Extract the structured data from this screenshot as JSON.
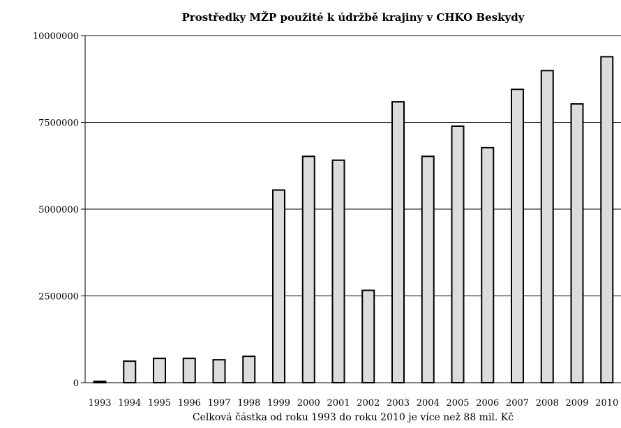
{
  "chart_data": {
    "type": "bar",
    "title": "Prostředky MŽP použité k údržbě krajiny v CHKO Beskydy",
    "xlabel": "",
    "ylabel": "",
    "caption": "Celková částka od roku 1993 do roku 2010 je více než 88 mil. Kč",
    "categories": [
      "1993",
      "1994",
      "1995",
      "1996",
      "1997",
      "1998",
      "1999",
      "2000",
      "2001",
      "2002",
      "2003",
      "2004",
      "2005",
      "2006",
      "2007",
      "2008",
      "2009",
      "2010"
    ],
    "values": [
      40000,
      620000,
      700000,
      700000,
      660000,
      760000,
      5550000,
      6520000,
      6410000,
      2660000,
      8090000,
      6520000,
      7390000,
      6770000,
      8450000,
      8990000,
      8030000,
      9390000
    ],
    "yticks": [
      "0",
      "2500000",
      "5000000",
      "7500000",
      "10000000"
    ],
    "ylim": [
      0,
      10000000
    ],
    "grid": true,
    "legend": "none",
    "bar_fill": "#dcdcdc",
    "bar_stroke": "#000000"
  }
}
